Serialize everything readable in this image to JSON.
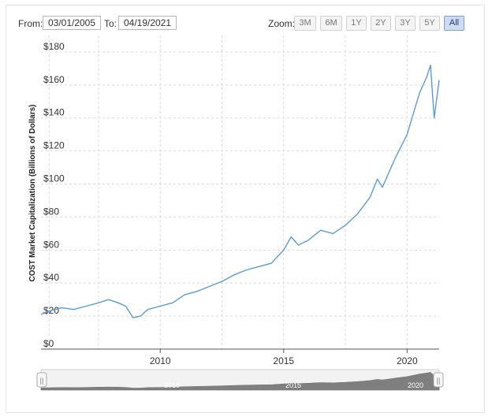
{
  "range_selector": {
    "from_label": "From:",
    "from_value": "03/01/2005",
    "to_label": "To:",
    "to_value": "04/19/2021",
    "zoom_label": "Zoom:",
    "zoom_buttons": [
      "3M",
      "6M",
      "1Y",
      "2Y",
      "3Y",
      "5Y",
      "All"
    ],
    "active_zoom": "All"
  },
  "navigator": {
    "handle_glyph": "||",
    "year_labels": [
      "2010",
      "2015",
      "2020"
    ]
  },
  "colors": {
    "series": "#5b9bd5",
    "grid": "#d9d9d9",
    "navigator_fill": "#7f7f7f",
    "active_zoom": "#cfdbf2"
  },
  "chart_data": {
    "type": "line",
    "title": "",
    "xlabel": "",
    "ylabel": "COST Market Capitalization (Billions of Dollars)",
    "ylim": [
      0,
      190
    ],
    "xlim": [
      2005.17,
      2021.3
    ],
    "y_ticks": [
      "$0",
      "$20",
      "$40",
      "$60",
      "$80",
      "$100",
      "$120",
      "$140",
      "$160",
      "$180"
    ],
    "x_ticks": [
      "2010",
      "2015",
      "2020"
    ],
    "grid": true,
    "legend": "none",
    "series": [
      {
        "name": "",
        "x": [
          2005.17,
          2005.5,
          2006.0,
          2006.5,
          2007.0,
          2007.5,
          2007.9,
          2008.3,
          2008.6,
          2008.9,
          2009.2,
          2009.5,
          2010.0,
          2010.5,
          2011.0,
          2011.5,
          2012.0,
          2012.5,
          2013.0,
          2013.5,
          2014.0,
          2014.5,
          2015.0,
          2015.3,
          2015.6,
          2016.0,
          2016.5,
          2017.0,
          2017.5,
          2018.0,
          2018.5,
          2018.8,
          2019.0,
          2019.5,
          2020.0,
          2020.2,
          2020.5,
          2020.8,
          2020.95,
          2021.1,
          2021.3
        ],
        "y": [
          21,
          23,
          25,
          24,
          26,
          28,
          30,
          28,
          26,
          19,
          20,
          24,
          26,
          28,
          33,
          35,
          38,
          41,
          45,
          48,
          50,
          52,
          60,
          68,
          63,
          66,
          72,
          70,
          75,
          82,
          92,
          103,
          98,
          115,
          130,
          140,
          155,
          165,
          172,
          140,
          163
        ]
      }
    ]
  }
}
